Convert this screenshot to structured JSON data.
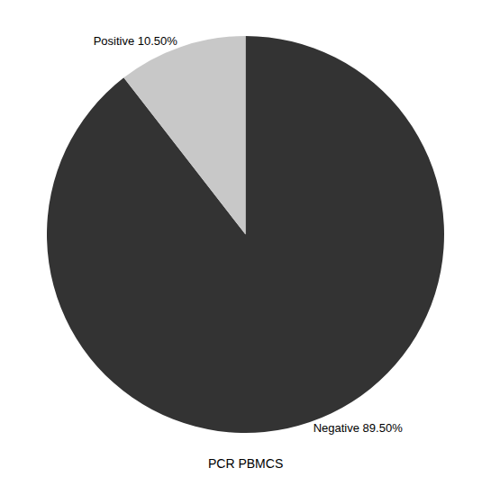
{
  "chart_data": {
    "type": "pie",
    "categories": [
      "Negative 89.50%",
      "Positive 10.50%"
    ],
    "values": [
      89.5,
      10.5
    ],
    "colors": [
      "#333333",
      "#c8c8c8"
    ],
    "xlabel": "PCR PBMCS"
  }
}
